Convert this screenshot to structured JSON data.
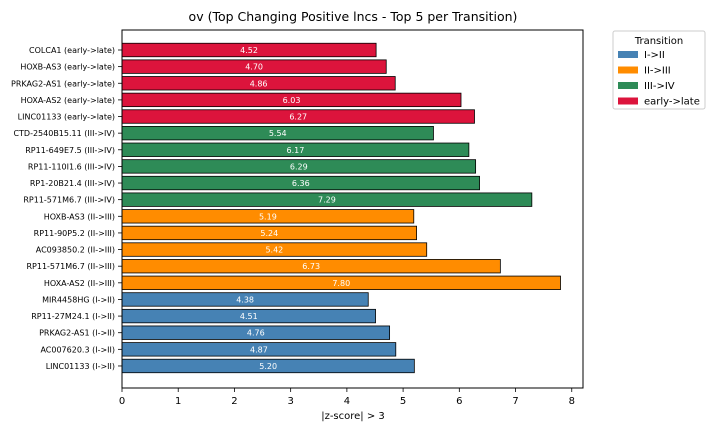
{
  "chart_data": {
    "type": "bar",
    "orientation": "horizontal",
    "title": "ov (Top Changing Positive lncs - Top 5 per Transition)",
    "xlabel": "|z-score| > 3",
    "ylabel": "",
    "xlim": [
      0,
      8.2
    ],
    "xticks": [
      "0",
      "1",
      "2",
      "3",
      "4",
      "5",
      "6",
      "7",
      "8"
    ],
    "grid": false,
    "legend": {
      "title": "Transition",
      "placement": "outside-top-right",
      "entries": [
        {
          "label": "I->II",
          "color": "#4682b4"
        },
        {
          "label": "II->III",
          "color": "#ff8c00"
        },
        {
          "label": "III->IV",
          "color": "#2e8b57"
        },
        {
          "label": "early->late",
          "color": "#dc143c"
        }
      ]
    },
    "bars": [
      {
        "label": "COLCA1 (early->late)",
        "value": 4.52,
        "value_label": "4.52",
        "group": "early->late",
        "color": "#dc143c"
      },
      {
        "label": "HOXB-AS3 (early->late)",
        "value": 4.7,
        "value_label": "4.70",
        "group": "early->late",
        "color": "#dc143c"
      },
      {
        "label": "PRKAG2-AS1 (early->late)",
        "value": 4.86,
        "value_label": "4.86",
        "group": "early->late",
        "color": "#dc143c"
      },
      {
        "label": "HOXA-AS2 (early->late)",
        "value": 6.03,
        "value_label": "6.03",
        "group": "early->late",
        "color": "#dc143c"
      },
      {
        "label": "LINC01133 (early->late)",
        "value": 6.27,
        "value_label": "6.27",
        "group": "early->late",
        "color": "#dc143c"
      },
      {
        "label": "CTD-2540B15.11 (III->IV)",
        "value": 5.54,
        "value_label": "5.54",
        "group": "III->IV",
        "color": "#2e8b57"
      },
      {
        "label": "RP11-649E7.5 (III->IV)",
        "value": 6.17,
        "value_label": "6.17",
        "group": "III->IV",
        "color": "#2e8b57"
      },
      {
        "label": "RP11-110I1.6 (III->IV)",
        "value": 6.29,
        "value_label": "6.29",
        "group": "III->IV",
        "color": "#2e8b57"
      },
      {
        "label": "RP1-20B21.4 (III->IV)",
        "value": 6.36,
        "value_label": "6.36",
        "group": "III->IV",
        "color": "#2e8b57"
      },
      {
        "label": "RP11-571M6.7 (III->IV)",
        "value": 7.29,
        "value_label": "7.29",
        "group": "III->IV",
        "color": "#2e8b57"
      },
      {
        "label": "HOXB-AS3 (II->III)",
        "value": 5.19,
        "value_label": "5.19",
        "group": "II->III",
        "color": "#ff8c00"
      },
      {
        "label": "RP11-90P5.2 (II->III)",
        "value": 5.24,
        "value_label": "5.24",
        "group": "II->III",
        "color": "#ff8c00"
      },
      {
        "label": "AC093850.2 (II->III)",
        "value": 5.42,
        "value_label": "5.42",
        "group": "II->III",
        "color": "#ff8c00"
      },
      {
        "label": "RP11-571M6.7 (II->III)",
        "value": 6.73,
        "value_label": "6.73",
        "group": "II->III",
        "color": "#ff8c00"
      },
      {
        "label": "HOXA-AS2 (II->III)",
        "value": 7.8,
        "value_label": "7.80",
        "group": "II->III",
        "color": "#ff8c00"
      },
      {
        "label": "MIR4458HG (I->II)",
        "value": 4.38,
        "value_label": "4.38",
        "group": "I->II",
        "color": "#4682b4"
      },
      {
        "label": "RP11-27M24.1 (I->II)",
        "value": 4.51,
        "value_label": "4.51",
        "group": "I->II",
        "color": "#4682b4"
      },
      {
        "label": "PRKAG2-AS1 (I->II)",
        "value": 4.76,
        "value_label": "4.76",
        "group": "I->II",
        "color": "#4682b4"
      },
      {
        "label": "AC007620.3 (I->II)",
        "value": 4.87,
        "value_label": "4.87",
        "group": "I->II",
        "color": "#4682b4"
      },
      {
        "label": "LINC01133 (I->II)",
        "value": 5.2,
        "value_label": "5.20",
        "group": "I->II",
        "color": "#4682b4"
      }
    ]
  }
}
